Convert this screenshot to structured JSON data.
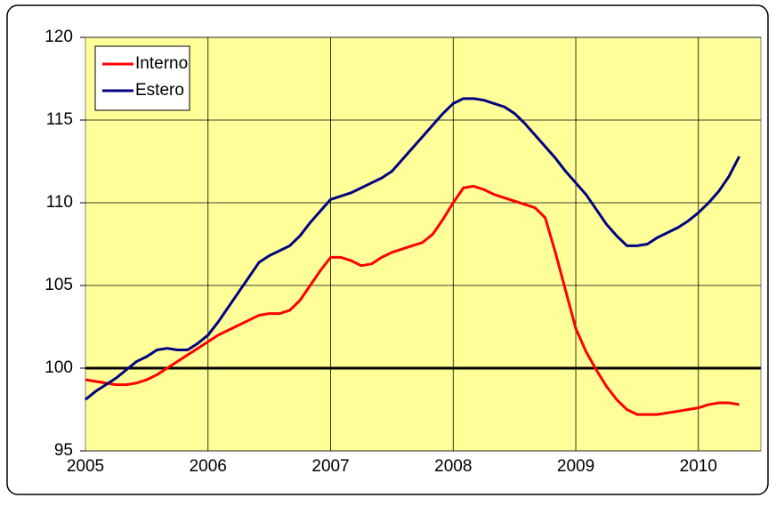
{
  "chart_data": {
    "type": "line",
    "categories": [
      "2005",
      null,
      null,
      null,
      null,
      null,
      null,
      null,
      null,
      null,
      null,
      null,
      "2006",
      null,
      null,
      null,
      null,
      null,
      null,
      null,
      null,
      null,
      null,
      null,
      "2007",
      null,
      null,
      null,
      null,
      null,
      null,
      null,
      null,
      null,
      null,
      null,
      "2008",
      null,
      null,
      null,
      null,
      null,
      null,
      null,
      null,
      null,
      null,
      null,
      "2009",
      null,
      null,
      null,
      null,
      null,
      null,
      null,
      null,
      null,
      null,
      null,
      "2010",
      null,
      null,
      null,
      null
    ],
    "series": [
      {
        "name": "Interno",
        "color": "#ff0000",
        "values": [
          99.3,
          99.2,
          99.1,
          99.0,
          99.0,
          99.1,
          99.3,
          99.6,
          100.0,
          100.4,
          100.8,
          101.2,
          101.6,
          102.0,
          102.3,
          102.6,
          102.9,
          103.2,
          103.3,
          103.3,
          103.5,
          104.1,
          105.0,
          105.9,
          106.7,
          106.7,
          106.5,
          106.2,
          106.3,
          106.7,
          107.0,
          107.2,
          107.4,
          107.6,
          108.1,
          109.0,
          110.0,
          110.9,
          111.0,
          110.8,
          110.5,
          110.3,
          110.1,
          109.9,
          109.7,
          109.1,
          107.0,
          104.7,
          102.4,
          101.0,
          99.9,
          98.9,
          98.1,
          97.5,
          97.2,
          97.2,
          97.2,
          97.3,
          97.4,
          97.5,
          97.6,
          97.8,
          97.9,
          97.9,
          97.8
        ]
      },
      {
        "name": "Estero",
        "color": "#000080",
        "values": [
          98.1,
          98.6,
          99.0,
          99.4,
          99.9,
          100.4,
          100.7,
          101.1,
          101.2,
          101.1,
          101.1,
          101.5,
          102.0,
          102.8,
          103.7,
          104.6,
          105.5,
          106.4,
          106.8,
          107.1,
          107.4,
          108.0,
          108.8,
          109.5,
          110.2,
          110.4,
          110.6,
          110.9,
          111.2,
          111.5,
          111.9,
          112.6,
          113.3,
          114.0,
          114.7,
          115.4,
          116.0,
          116.3,
          116.3,
          116.2,
          116.0,
          115.8,
          115.4,
          114.8,
          114.1,
          113.4,
          112.7,
          111.9,
          111.2,
          110.5,
          109.6,
          108.7,
          108.0,
          107.4,
          107.4,
          107.5,
          107.9,
          108.2,
          108.5,
          108.9,
          109.4,
          110.0,
          110.7,
          111.6,
          112.8
        ]
      }
    ],
    "ylim": [
      95,
      120
    ],
    "yticks": [
      95,
      100,
      105,
      110,
      115,
      120
    ],
    "grid": true,
    "hline": 100,
    "legend": "top-left"
  }
}
